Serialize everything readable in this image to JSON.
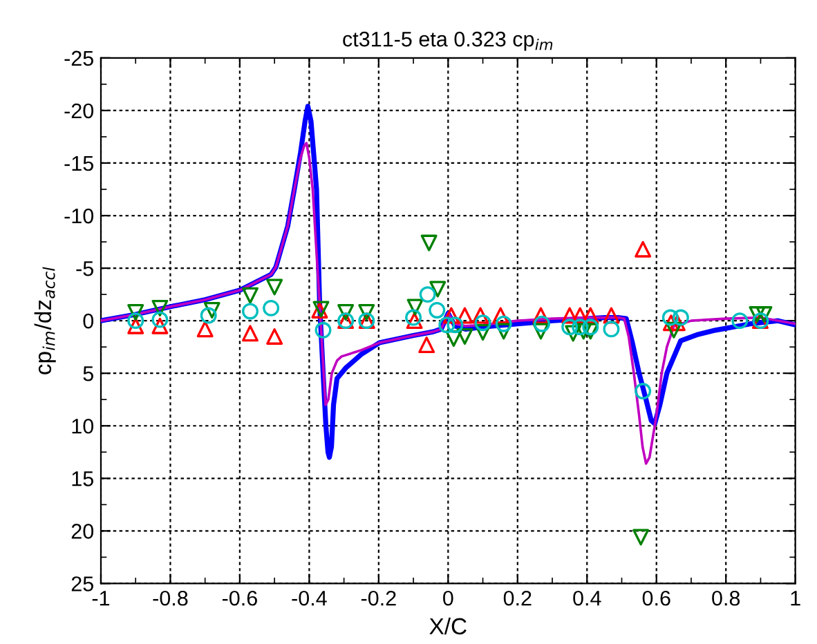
{
  "chart_data": {
    "type": "line",
    "title": "ct311-5 eta 0.323 cp$_{im}$",
    "xlabel": "X/C",
    "ylabel": "cp$_{im}$/dz$_{accl}$",
    "xlim": [
      -1,
      1
    ],
    "xticks": [
      -1,
      -0.8,
      -0.6,
      -0.4,
      -0.2,
      0,
      0.2,
      0.4,
      0.6,
      0.8,
      1
    ],
    "ylim": [
      25,
      -25
    ],
    "yticks": [
      -25,
      -20,
      -15,
      -10,
      -5,
      0,
      5,
      10,
      15,
      20,
      25
    ],
    "grid": true,
    "legend": false,
    "series": [
      {
        "type": "line",
        "color": "#0000ff",
        "marker": "none",
        "x": [
          -1,
          -0.9,
          -0.79,
          -0.7,
          -0.6,
          -0.51,
          -0.496,
          -0.462,
          -0.443,
          -0.425,
          -0.412,
          -0.404,
          -0.395,
          -0.385,
          -0.379,
          -0.37,
          -0.36,
          -0.352,
          -0.346,
          -0.342,
          -0.336,
          -0.33,
          -0.32,
          -0.295,
          -0.25,
          -0.198,
          -0.1,
          -0.043,
          -0.02,
          0,
          0.02,
          0.05,
          0.1,
          0.2,
          0.3,
          0.4,
          0.45,
          0.49,
          0.513,
          0.53,
          0.55,
          0.57,
          0.585,
          0.595,
          0.61,
          0.63,
          0.67,
          0.72,
          0.77,
          0.87,
          0.95,
          1
        ],
        "values": [
          0,
          -0.6,
          -1.4,
          -2,
          -2.9,
          -4.4,
          -5.1,
          -9,
          -12.5,
          -16,
          -19,
          -20.4,
          -19,
          -15,
          -12.5,
          -1.6,
          5,
          10,
          12.5,
          13,
          12,
          8,
          5.5,
          4.5,
          3.2,
          2.1,
          1.4,
          1.05,
          0.8,
          -0.7,
          0.5,
          0.8,
          0.6,
          0.3,
          0,
          -0.2,
          -0.3,
          -0.3,
          -0.2,
          2,
          5,
          7.5,
          9.5,
          9.8,
          8,
          5,
          1.9,
          1.3,
          0.9,
          0.3,
          0,
          0.4
        ]
      },
      {
        "type": "line",
        "color": "#c000c0",
        "marker": "none",
        "x": [
          -1,
          -0.9,
          -0.79,
          -0.7,
          -0.6,
          -0.51,
          -0.496,
          -0.462,
          -0.443,
          -0.425,
          -0.415,
          -0.408,
          -0.4,
          -0.39,
          -0.38,
          -0.37,
          -0.362,
          -0.353,
          -0.345,
          -0.335,
          -0.32,
          -0.307,
          -0.25,
          -0.198,
          -0.1,
          -0.043,
          -0.02,
          0,
          0.02,
          0.05,
          0.1,
          0.2,
          0.3,
          0.4,
          0.45,
          0.49,
          0.507,
          0.52,
          0.535,
          0.55,
          0.56,
          0.57,
          0.58,
          0.6,
          0.615,
          0.63,
          0.65,
          0.7,
          0.8,
          0.9,
          1
        ],
        "values": [
          0,
          -0.6,
          -1.4,
          -2,
          -2.9,
          -4.4,
          -5.1,
          -9,
          -12.5,
          -15.5,
          -16.6,
          -16.9,
          -15.5,
          -12.5,
          -7,
          -1.6,
          3,
          8,
          7.5,
          5,
          3.8,
          3.4,
          2.8,
          2.1,
          1.4,
          1.05,
          0.8,
          -0.7,
          0.3,
          0.5,
          0.4,
          0,
          -0.2,
          -0.3,
          -0.3,
          -0.3,
          -0.2,
          1.5,
          5,
          9,
          12,
          13.6,
          13,
          9,
          5,
          2.5,
          0.5,
          0,
          -0.2,
          -0.3,
          0.3
        ]
      },
      {
        "type": "scatter",
        "color": "#ff0000",
        "marker": "triangle",
        "x": [
          -0.9,
          -0.83,
          -0.7,
          -0.57,
          -0.5,
          -0.37,
          -0.295,
          -0.234,
          -0.097,
          -0.062,
          0.009,
          0.048,
          0.093,
          0.151,
          0.267,
          0.35,
          0.38,
          0.41,
          0.47,
          0.561,
          0.642,
          0.66,
          0.899
        ],
        "values": [
          0.5,
          0.5,
          0.8,
          1.2,
          1.5,
          -1,
          0,
          0,
          0,
          2.3,
          -0.5,
          -0.5,
          -0.5,
          -0.5,
          -0.5,
          -0.5,
          -0.5,
          -0.5,
          -0.5,
          -6.8,
          0.2,
          0.2,
          0
        ]
      },
      {
        "type": "scatter",
        "color": "#008000",
        "marker": "triangle_down",
        "x": [
          -0.9,
          -0.83,
          -0.68,
          -0.57,
          -0.5,
          -0.366,
          -0.295,
          -0.235,
          -0.095,
          -0.055,
          -0.03,
          0.016,
          0.048,
          0.1,
          0.16,
          0.267,
          0.36,
          0.39,
          0.41,
          0.555,
          0.65,
          0.89,
          0.91
        ],
        "values": [
          -0.8,
          -1.2,
          -1,
          -2.4,
          -3.2,
          -1.1,
          -0.8,
          -0.8,
          -1.3,
          -7.4,
          -3,
          1.7,
          1.5,
          1.1,
          1,
          1,
          1.2,
          1,
          1,
          20.6,
          0.9,
          -0.6,
          -0.6
        ]
      },
      {
        "type": "scatter",
        "color": "#00bfbf",
        "marker": "circle",
        "x": [
          -0.9,
          -0.83,
          -0.69,
          -0.57,
          -0.51,
          -0.36,
          -0.295,
          -0.235,
          -0.1,
          -0.059,
          -0.032,
          -0.004,
          0.02,
          0.1,
          0.16,
          0.27,
          0.35,
          0.38,
          0.41,
          0.47,
          0.561,
          0.64,
          0.67,
          0.84,
          0.9
        ],
        "values": [
          0,
          -0.1,
          -0.5,
          -0.9,
          -1.2,
          0.9,
          0,
          0,
          -0.3,
          -2.5,
          -1,
          0.4,
          0.4,
          0.2,
          0.3,
          0.3,
          0.6,
          0.6,
          0.6,
          0.8,
          6.7,
          -0.3,
          -0.3,
          0,
          0
        ]
      }
    ]
  }
}
